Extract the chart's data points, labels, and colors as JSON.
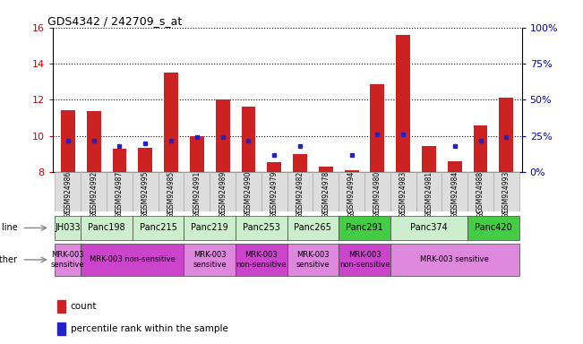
{
  "title": "GDS4342 / 242709_s_at",
  "samples": [
    "GSM924986",
    "GSM924992",
    "GSM924987",
    "GSM924995",
    "GSM924985",
    "GSM924991",
    "GSM924989",
    "GSM924990",
    "GSM924979",
    "GSM924982",
    "GSM924978",
    "GSM924994",
    "GSM924980",
    "GSM924983",
    "GSM924981",
    "GSM924984",
    "GSM924988",
    "GSM924993"
  ],
  "count_values": [
    11.4,
    11.35,
    9.3,
    9.35,
    13.5,
    10.0,
    12.0,
    11.6,
    8.55,
    9.0,
    8.3,
    8.1,
    12.85,
    15.6,
    9.45,
    8.6,
    10.6,
    12.1
  ],
  "percentile_values": [
    22,
    22,
    18,
    20,
    22,
    24,
    24,
    22,
    12,
    18,
    null,
    12,
    26,
    26,
    null,
    18,
    22,
    24
  ],
  "cell_lines": [
    {
      "label": "JH033",
      "start": 0,
      "end": 1,
      "color": "#cceecc"
    },
    {
      "label": "Panc198",
      "start": 1,
      "end": 3,
      "color": "#cceecc"
    },
    {
      "label": "Panc215",
      "start": 3,
      "end": 5,
      "color": "#cceecc"
    },
    {
      "label": "Panc219",
      "start": 5,
      "end": 7,
      "color": "#cceecc"
    },
    {
      "label": "Panc253",
      "start": 7,
      "end": 9,
      "color": "#cceecc"
    },
    {
      "label": "Panc265",
      "start": 9,
      "end": 11,
      "color": "#cceecc"
    },
    {
      "label": "Panc291",
      "start": 11,
      "end": 13,
      "color": "#44cc44"
    },
    {
      "label": "Panc374",
      "start": 13,
      "end": 16,
      "color": "#cceecc"
    },
    {
      "label": "Panc420",
      "start": 16,
      "end": 18,
      "color": "#44cc44"
    }
  ],
  "other_labels": [
    {
      "label": "MRK-003\nsensitive",
      "start": 0,
      "end": 1,
      "color": "#dd88dd"
    },
    {
      "label": "MRK-003 non-sensitive",
      "start": 1,
      "end": 5,
      "color": "#cc44cc"
    },
    {
      "label": "MRK-003\nsensitive",
      "start": 5,
      "end": 7,
      "color": "#dd88dd"
    },
    {
      "label": "MRK-003\nnon-sensitive",
      "start": 7,
      "end": 9,
      "color": "#cc44cc"
    },
    {
      "label": "MRK-003\nsensitive",
      "start": 9,
      "end": 11,
      "color": "#dd88dd"
    },
    {
      "label": "MRK-003\nnon-sensitive",
      "start": 11,
      "end": 13,
      "color": "#cc44cc"
    },
    {
      "label": "MRK-003 sensitive",
      "start": 13,
      "end": 18,
      "color": "#dd88dd"
    }
  ],
  "ylim_left": [
    8,
    16
  ],
  "ylim_right": [
    0,
    100
  ],
  "yticks_left": [
    8,
    10,
    12,
    14,
    16
  ],
  "yticks_right": [
    0,
    25,
    50,
    75,
    100
  ],
  "bar_color": "#cc2222",
  "dot_color": "#2222cc",
  "bar_width": 0.55,
  "background_color": "#ffffff",
  "tick_label_color_left": "#cc0000",
  "tick_label_color_right": "#0000cc"
}
